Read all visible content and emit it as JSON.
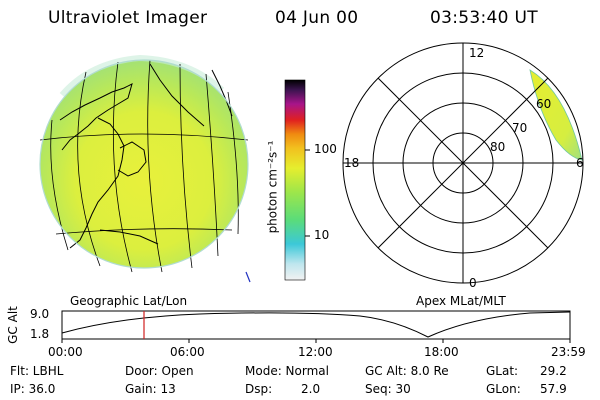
{
  "header": {
    "title": "Ultraviolet Imager",
    "date": "04 Jun 00",
    "time": "03:53:40 UT"
  },
  "colorbar": {
    "unit_label": "photon cm⁻²s⁻¹",
    "ticks": [
      "100",
      "10"
    ]
  },
  "polar_plot": {
    "mlt_labels": {
      "top": "12",
      "left": "18",
      "right": "6",
      "bottom": "0"
    },
    "lat_labels": [
      "60",
      "70",
      "80"
    ]
  },
  "panel_titles": {
    "left": "Geographic Lat/Lon",
    "right": "Apex MLat/MLT"
  },
  "altitude_plot": {
    "axis_label": "GC Alt",
    "y_ticks": [
      "9.0",
      "1.8"
    ],
    "time_ticks": [
      "00:00",
      "06:00",
      "12:00",
      "18:00",
      "23:59"
    ]
  },
  "info": {
    "row1": {
      "flt": "Flt: LBHL",
      "door": "Door: Open",
      "mode": "Mode: Normal",
      "gcalt": "GC Alt: 8.0 Re",
      "glat": "GLat:",
      "glat_val": "29.2"
    },
    "row2": {
      "ip": "IP: 36.0",
      "gain": "Gain: 13",
      "dsp": "Dsp:",
      "dsp_val": "2.0",
      "seq": "Seq: 30",
      "glon": "GLon:",
      "glon_val": "57.9"
    }
  }
}
